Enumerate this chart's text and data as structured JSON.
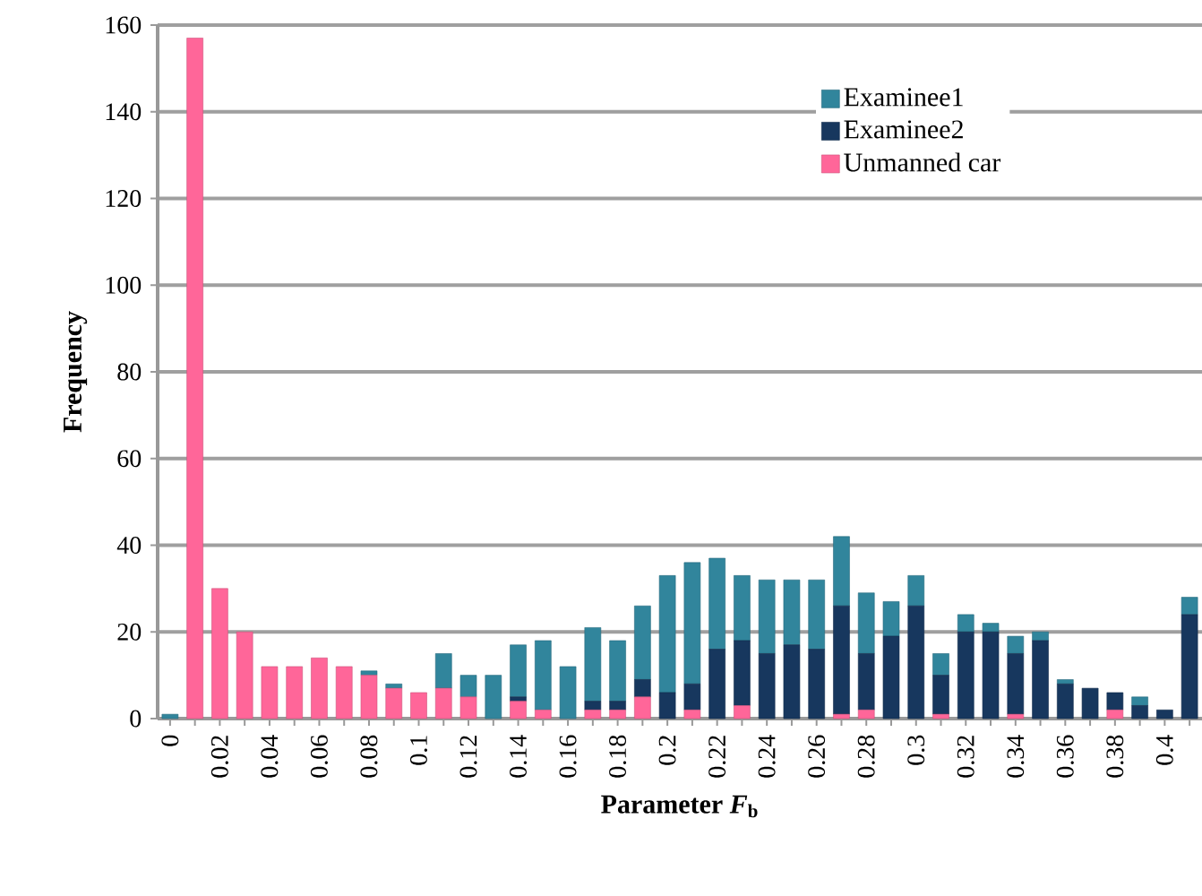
{
  "chart_data": {
    "type": "bar",
    "stacked": true,
    "xlabel": "Parameter *F*$_{b}$",
    "ylabel": "Frequency",
    "categories": [
      "0",
      null,
      "0.02",
      null,
      "0.04",
      null,
      "0.06",
      null,
      "0.08",
      null,
      "0.1",
      null,
      "0.12",
      null,
      "0.14",
      null,
      "0.16",
      null,
      "0.18",
      null,
      "0.2",
      null,
      "0.22",
      null,
      "0.24",
      null,
      "0.26",
      null,
      "0.28",
      null,
      "0.3",
      null,
      "0.32",
      null,
      "0.34",
      null,
      "0.36",
      null,
      "0.38",
      null,
      "0.4",
      null
    ],
    "series": [
      {
        "name": "Unmanned car",
        "color": "#ff6699",
        "values": [
          0,
          157,
          30,
          20,
          12,
          12,
          14,
          12,
          10,
          7,
          6,
          7,
          5,
          0,
          4,
          2,
          0,
          2,
          2,
          5,
          0,
          2,
          0,
          3,
          0,
          0,
          0,
          1,
          2,
          0,
          0,
          1,
          0,
          0,
          1,
          0,
          0,
          0,
          2,
          0,
          0,
          0
        ]
      },
      {
        "name": "Examinee2",
        "color": "#17375e",
        "values": [
          0,
          0,
          0,
          0,
          0,
          0,
          0,
          0,
          0,
          0,
          0,
          0,
          0,
          0,
          1,
          0,
          0,
          2,
          2,
          4,
          6,
          6,
          16,
          15,
          15,
          17,
          16,
          25,
          13,
          19,
          26,
          9,
          20,
          20,
          14,
          18,
          8,
          7,
          4,
          3,
          2,
          24
        ]
      },
      {
        "name": "Examinee1",
        "color": "#31859c",
        "values": [
          1,
          0,
          0,
          0,
          0,
          0,
          0,
          0,
          1,
          1,
          0,
          8,
          5,
          10,
          12,
          16,
          12,
          17,
          14,
          17,
          27,
          28,
          21,
          15,
          17,
          15,
          16,
          16,
          14,
          8,
          7,
          5,
          4,
          2,
          4,
          2,
          1,
          0,
          0,
          2,
          0,
          4
        ]
      }
    ],
    "ylim": [
      0,
      160
    ],
    "yticks": [
      0,
      20,
      40,
      60,
      80,
      100,
      120,
      140,
      160
    ],
    "grid": "y",
    "legend": "top right"
  }
}
